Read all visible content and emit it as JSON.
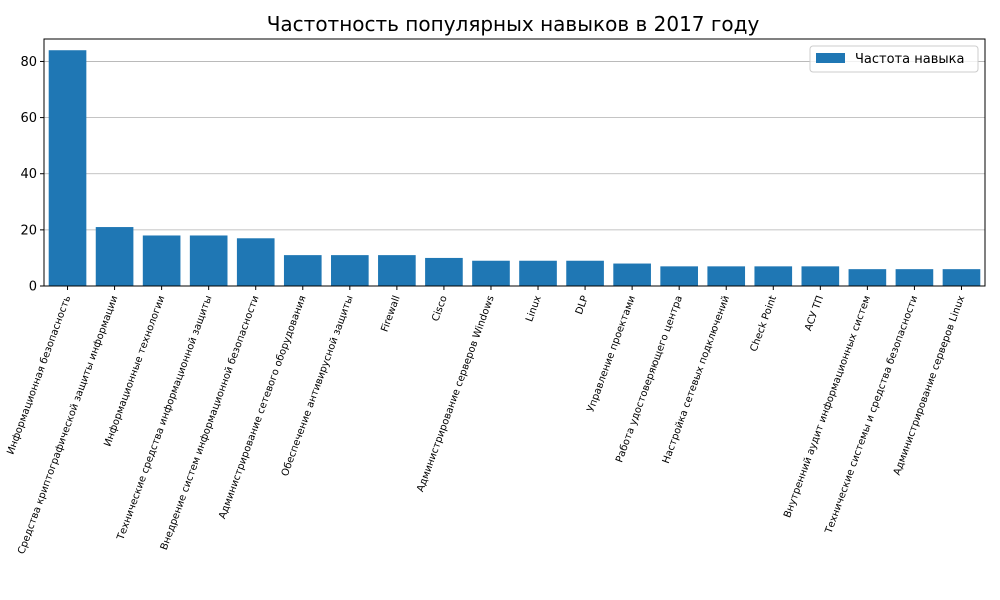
{
  "chart_data": {
    "type": "bar",
    "title": "Частотность популярных навыков в 2017 году",
    "xlabel": "",
    "ylabel": "",
    "ylim": [
      0,
      88
    ],
    "yticks": [
      0,
      20,
      40,
      60,
      80
    ],
    "grid": "horizontal",
    "legend_placement": "top-right",
    "bar_color": "#1f77b4",
    "series": [
      {
        "name": "Частота навыка",
        "values": [
          84,
          21,
          18,
          18,
          17,
          11,
          11,
          11,
          10,
          9,
          9,
          9,
          8,
          7,
          7,
          7,
          7,
          6,
          6,
          6
        ]
      }
    ],
    "categories": [
      "Информационная безопасность",
      "Средства криптографической защиты информации",
      "Информационные технологии",
      "Технические средства информационной защиты",
      "Внедрение систем информационной безопасности",
      "Администрирование сетевого оборудования",
      "Обеспечение антивирусной защиты",
      "Firewall",
      "Cisco",
      "Администрирование серверов Windows",
      "Linux",
      "DLP",
      "Управление проектами",
      "Работа удостоверяющего центра",
      "Настройка сетевых подключений",
      "Check Point",
      "АСУ ТП",
      "Внутренний аудит информационных систем",
      "Технические системы и средства безопасности",
      "Администрирование серверов Linux"
    ]
  }
}
